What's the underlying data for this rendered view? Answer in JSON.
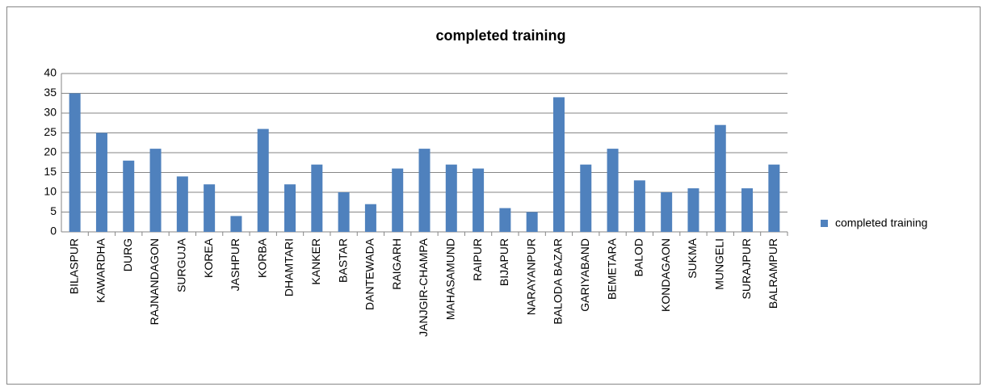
{
  "chart_data": {
    "type": "bar",
    "title": "completed training",
    "categories": [
      "BILASPUR",
      "KAWARDHA",
      "DURG",
      "RAJNANDAGON",
      "SURGUJA",
      "KOREA",
      "JASHPUR",
      "KORBA",
      "DHAMTARI",
      "KANKER",
      "BASTAR",
      "DANTEWADA",
      "RAIGARH",
      "JANJGIR-CHAMPA",
      "MAHASAMUND",
      "RAIPUR",
      "BIJAPUR",
      "NARAYANPUR",
      "BALODA BAZAR",
      "GARIYABAND",
      "BEMETARA",
      "BALOD",
      "KONDAGAON",
      "SUKMA",
      "MUNGELI",
      "SURAJPUR",
      "BALRAMPUR"
    ],
    "series": [
      {
        "name": "completed training",
        "color": "#4f81bd",
        "values": [
          35,
          25,
          18,
          21,
          14,
          12,
          4,
          26,
          12,
          17,
          10,
          7,
          16,
          21,
          17,
          16,
          6,
          5,
          34,
          17,
          21,
          13,
          10,
          11,
          27,
          11,
          17
        ]
      }
    ],
    "ylim": [
      0,
      40
    ],
    "yticks": [
      0,
      5,
      10,
      15,
      20,
      25,
      30,
      35,
      40
    ],
    "grid": true,
    "legend": "right"
  }
}
